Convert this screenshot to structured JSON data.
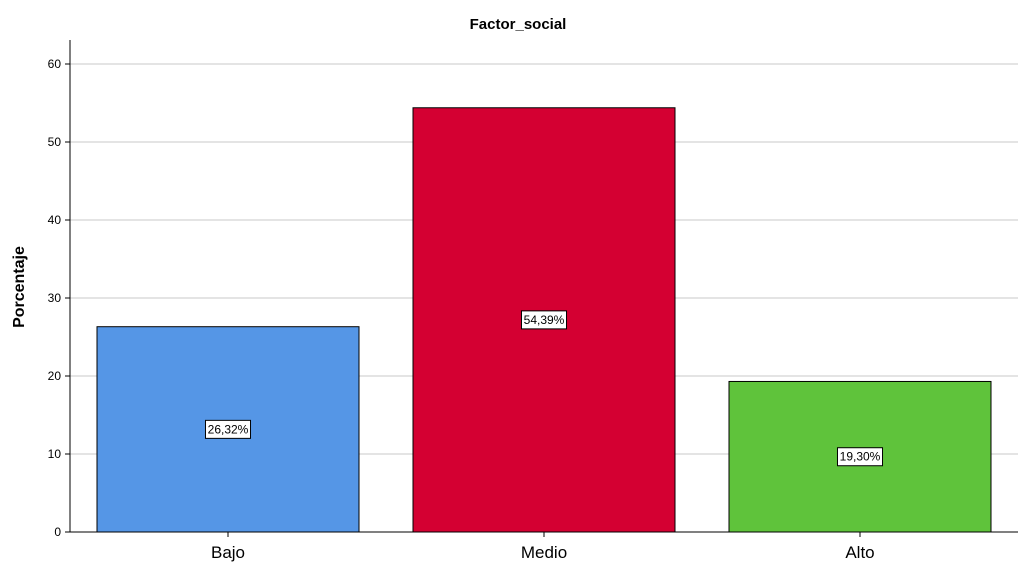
{
  "chart_data": {
    "type": "bar",
    "title": "Factor_social",
    "xlabel": "",
    "ylabel": "Porcentaje",
    "ylim": [
      0,
      63
    ],
    "yticks": [
      0,
      10,
      20,
      30,
      40,
      50,
      60
    ],
    "grid": true,
    "categories": [
      "Bajo",
      "Medio",
      "Alto"
    ],
    "values": [
      26.32,
      54.39,
      19.3
    ],
    "data_labels": [
      "26,32%",
      "54,39%",
      "19,30%"
    ],
    "colors": [
      "#5596e6",
      "#d40032",
      "#5fc33b"
    ]
  }
}
